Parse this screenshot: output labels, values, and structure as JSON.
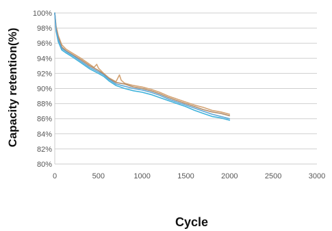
{
  "chart_data": {
    "type": "line",
    "title": "",
    "xlabel": "Cycle",
    "ylabel": "Capacity retention(%)",
    "xlim": [
      0,
      3000
    ],
    "ylim": [
      80,
      100
    ],
    "x_ticks": [
      "0",
      "500",
      "1000",
      "1500",
      "2000",
      "2500",
      "3000"
    ],
    "y_ticks": [
      "80%",
      "82%",
      "84%",
      "86%",
      "88%",
      "90%",
      "92%",
      "94%",
      "96%",
      "98%",
      "100%"
    ],
    "grid": "horizontal",
    "legend": "none",
    "series": [
      {
        "color": "#d4a373",
        "points": [
          [
            0,
            100
          ],
          [
            15,
            98.3
          ],
          [
            40,
            97.0
          ],
          [
            80,
            95.8
          ],
          [
            130,
            95.2
          ],
          [
            200,
            94.7
          ],
          [
            300,
            94.0
          ],
          [
            400,
            93.2
          ],
          [
            450,
            92.8
          ],
          [
            480,
            93.2
          ],
          [
            500,
            92.7
          ],
          [
            560,
            92.0
          ],
          [
            620,
            91.4
          ],
          [
            700,
            90.9
          ],
          [
            740,
            91.8
          ],
          [
            760,
            91.1
          ],
          [
            800,
            90.7
          ],
          [
            900,
            90.4
          ],
          [
            1000,
            90.2
          ],
          [
            1100,
            89.9
          ],
          [
            1200,
            89.5
          ],
          [
            1300,
            89.0
          ],
          [
            1400,
            88.6
          ],
          [
            1500,
            88.2
          ],
          [
            1600,
            87.8
          ],
          [
            1700,
            87.5
          ],
          [
            1800,
            87.1
          ],
          [
            1900,
            86.9
          ],
          [
            2000,
            86.6
          ]
        ]
      },
      {
        "color": "#b08c6a",
        "points": [
          [
            0,
            100
          ],
          [
            15,
            98.0
          ],
          [
            40,
            96.8
          ],
          [
            80,
            95.5
          ],
          [
            130,
            95.0
          ],
          [
            200,
            94.5
          ],
          [
            300,
            93.8
          ],
          [
            400,
            93.0
          ],
          [
            500,
            92.4
          ],
          [
            560,
            91.9
          ],
          [
            620,
            91.3
          ],
          [
            700,
            90.8
          ],
          [
            800,
            90.6
          ],
          [
            900,
            90.2
          ],
          [
            1000,
            90.0
          ],
          [
            1100,
            89.7
          ],
          [
            1200,
            89.3
          ],
          [
            1300,
            88.8
          ],
          [
            1400,
            88.4
          ],
          [
            1500,
            88.0
          ],
          [
            1600,
            87.6
          ],
          [
            1700,
            87.2
          ],
          [
            1800,
            86.9
          ],
          [
            1900,
            86.7
          ],
          [
            2000,
            86.4
          ]
        ]
      },
      {
        "color": "#3eb2db",
        "points": [
          [
            0,
            100
          ],
          [
            15,
            97.6
          ],
          [
            40,
            96.2
          ],
          [
            80,
            95.1
          ],
          [
            130,
            94.7
          ],
          [
            200,
            94.2
          ],
          [
            300,
            93.4
          ],
          [
            400,
            92.6
          ],
          [
            500,
            92.0
          ],
          [
            560,
            91.6
          ],
          [
            620,
            91.0
          ],
          [
            700,
            90.4
          ],
          [
            800,
            90.0
          ],
          [
            900,
            89.7
          ],
          [
            1000,
            89.5
          ],
          [
            1100,
            89.2
          ],
          [
            1200,
            88.8
          ],
          [
            1300,
            88.4
          ],
          [
            1400,
            88.0
          ],
          [
            1500,
            87.6
          ],
          [
            1600,
            87.1
          ],
          [
            1700,
            86.7
          ],
          [
            1800,
            86.3
          ],
          [
            1900,
            86.1
          ],
          [
            2000,
            85.8
          ]
        ]
      },
      {
        "color": "#5fa6d6",
        "points": [
          [
            0,
            100
          ],
          [
            15,
            97.8
          ],
          [
            40,
            96.5
          ],
          [
            80,
            95.3
          ],
          [
            130,
            94.9
          ],
          [
            200,
            94.4
          ],
          [
            300,
            93.6
          ],
          [
            400,
            92.8
          ],
          [
            500,
            92.2
          ],
          [
            560,
            91.8
          ],
          [
            620,
            91.2
          ],
          [
            700,
            90.6
          ],
          [
            800,
            90.3
          ],
          [
            900,
            90.0
          ],
          [
            1000,
            89.8
          ],
          [
            1100,
            89.5
          ],
          [
            1200,
            89.1
          ],
          [
            1300,
            88.6
          ],
          [
            1400,
            88.2
          ],
          [
            1500,
            87.8
          ],
          [
            1600,
            87.4
          ],
          [
            1700,
            87.0
          ],
          [
            1800,
            86.6
          ],
          [
            1900,
            86.3
          ],
          [
            2000,
            86.0
          ]
        ]
      }
    ]
  }
}
